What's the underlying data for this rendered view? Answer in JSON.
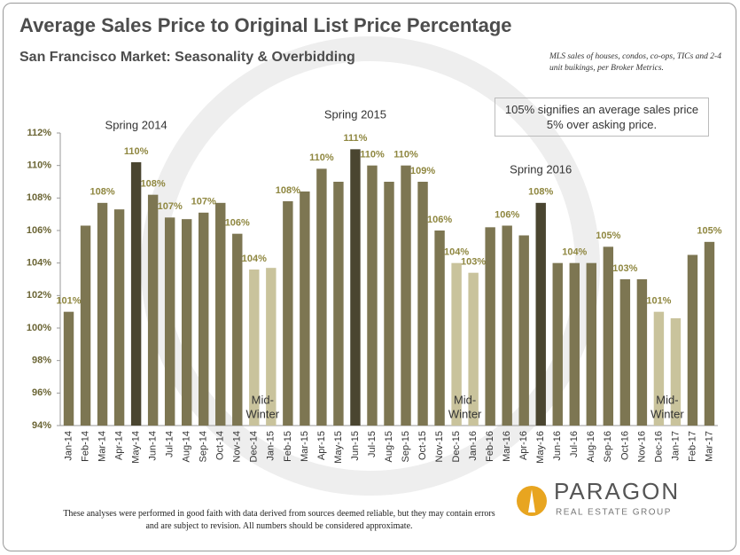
{
  "chart_data": {
    "type": "bar",
    "title": "Average Sales Price to Original List Price Percentage",
    "subtitle": "San Francisco Market: Seasonality & Overbidding",
    "source": "MLS sales of houses, condos, co-ops, TICs and 2-4 unit buikings, per Broker Metrics.",
    "note": "105% signifies an average sales price 5% over asking price.",
    "footer": "These analyses were performed in good faith with data derived from sources deemed reliable, but they may contain errors and are subject to revision. All numbers should be considered approximate.",
    "logo": {
      "name": "PARAGON",
      "tagline": "REAL ESTATE GROUP"
    },
    "annotations": [
      {
        "lines": [
          "Spring 2014"
        ]
      },
      {
        "lines": [
          "Spring 2015"
        ]
      },
      {
        "lines": [
          "Spring 2016"
        ]
      },
      {
        "lines": [
          "Mid-",
          "Winter"
        ]
      },
      {
        "lines": [
          "Mid-",
          "Winter"
        ]
      },
      {
        "lines": [
          "Mid-",
          "Winter"
        ]
      }
    ],
    "categories": [
      "Jan-14",
      "Feb-14",
      "Mar-14",
      "Apr-14",
      "May-14",
      "Jun-14",
      "Jul-14",
      "Aug-14",
      "Sep-14",
      "Oct-14",
      "Nov-14",
      "Dec-14",
      "Jan-15",
      "Feb-15",
      "Mar-15",
      "Apr-15",
      "May-15",
      "Jun-15",
      "Jul-15",
      "Aug-15",
      "Sep-15",
      "Oct-15",
      "Nov-15",
      "Dec-15",
      "Jan-16",
      "Feb-16",
      "Mar-16",
      "Apr-16",
      "May-16",
      "Jun-16",
      "Jul-16",
      "Aug-16",
      "Sep-16",
      "Oct-16",
      "Nov-16",
      "Dec-16",
      "Jan-17",
      "Feb-17",
      "Mar-17"
    ],
    "values": [
      101.0,
      106.3,
      107.7,
      107.3,
      110.2,
      108.2,
      106.8,
      106.7,
      107.1,
      107.7,
      105.8,
      103.6,
      103.7,
      107.8,
      108.4,
      109.8,
      109.0,
      111.0,
      110.0,
      109.0,
      110.0,
      109.0,
      106.0,
      104.0,
      103.4,
      106.2,
      106.3,
      105.7,
      107.7,
      104.0,
      104.0,
      104.0,
      105.0,
      103.0,
      103.0,
      101.0,
      100.6,
      104.5,
      105.3
    ],
    "value_labels": [
      "101%",
      null,
      "108%",
      null,
      "110%",
      "108%",
      "107%",
      null,
      "107%",
      null,
      "106%",
      "104%",
      null,
      "108%",
      null,
      "110%",
      null,
      "111%",
      "110%",
      null,
      "110%",
      "109%",
      "106%",
      "104%",
      "103%",
      null,
      "106%",
      null,
      "108%",
      null,
      "104%",
      null,
      "105%",
      "103%",
      null,
      "101%",
      null,
      null,
      "105%"
    ],
    "colors": [
      "#7d7652",
      "#7d7652",
      "#7d7652",
      "#7d7652",
      "#4a4530",
      "#7d7652",
      "#7d7652",
      "#7d7652",
      "#7d7652",
      "#7d7652",
      "#7d7652",
      "#c9c39c",
      "#c9c39c",
      "#7d7652",
      "#7d7652",
      "#7d7652",
      "#7d7652",
      "#4a4530",
      "#7d7652",
      "#7d7652",
      "#7d7652",
      "#7d7652",
      "#7d7652",
      "#c9c39c",
      "#c9c39c",
      "#7d7652",
      "#7d7652",
      "#7d7652",
      "#4a4530",
      "#7d7652",
      "#7d7652",
      "#7d7652",
      "#7d7652",
      "#7d7652",
      "#7d7652",
      "#c9c39c",
      "#c9c39c",
      "#7d7652",
      "#7d7652"
    ],
    "ylim": [
      94,
      112
    ],
    "yticks": [
      {
        "value": 94,
        "label": "94%"
      },
      {
        "value": 96,
        "label": "96%"
      },
      {
        "value": 98,
        "label": "98%"
      },
      {
        "value": 100,
        "label": "100%"
      },
      {
        "value": 102,
        "label": "102%"
      },
      {
        "value": 104,
        "label": "104%"
      },
      {
        "value": 106,
        "label": "106%"
      },
      {
        "value": 108,
        "label": "108%"
      },
      {
        "value": 110,
        "label": "110%"
      },
      {
        "value": 112,
        "label": "112%"
      }
    ],
    "grid": false
  }
}
